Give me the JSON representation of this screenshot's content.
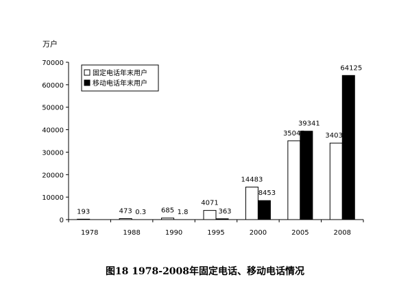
{
  "caption": "图18 1978-2008年固定电话、移动电话情况",
  "chart_data": {
    "type": "bar",
    "ylabel": "万户",
    "xlabel": "",
    "ylim": [
      0,
      70000
    ],
    "yticks": [
      0,
      10000,
      20000,
      30000,
      40000,
      50000,
      60000,
      70000
    ],
    "categories": [
      "1978",
      "1988",
      "1990",
      "1995",
      "2000",
      "2005",
      "2008"
    ],
    "series": [
      {
        "name": "固定电话年末用户",
        "color": "#ffffff",
        "values": [
          193,
          473,
          685,
          4071,
          14483,
          35045,
          34036
        ],
        "labels": [
          "193",
          "473",
          "685",
          "4071",
          "14483",
          "35045",
          "34036"
        ]
      },
      {
        "name": "移动电话年末用户",
        "color": "#000000",
        "values": [
          0,
          0.3,
          1.8,
          363,
          8453,
          39341,
          64125
        ],
        "labels": [
          "",
          "0.3",
          "1.8",
          "363",
          "8453",
          "39341",
          "64125"
        ]
      }
    ],
    "legend": "top-left",
    "grid": false
  }
}
